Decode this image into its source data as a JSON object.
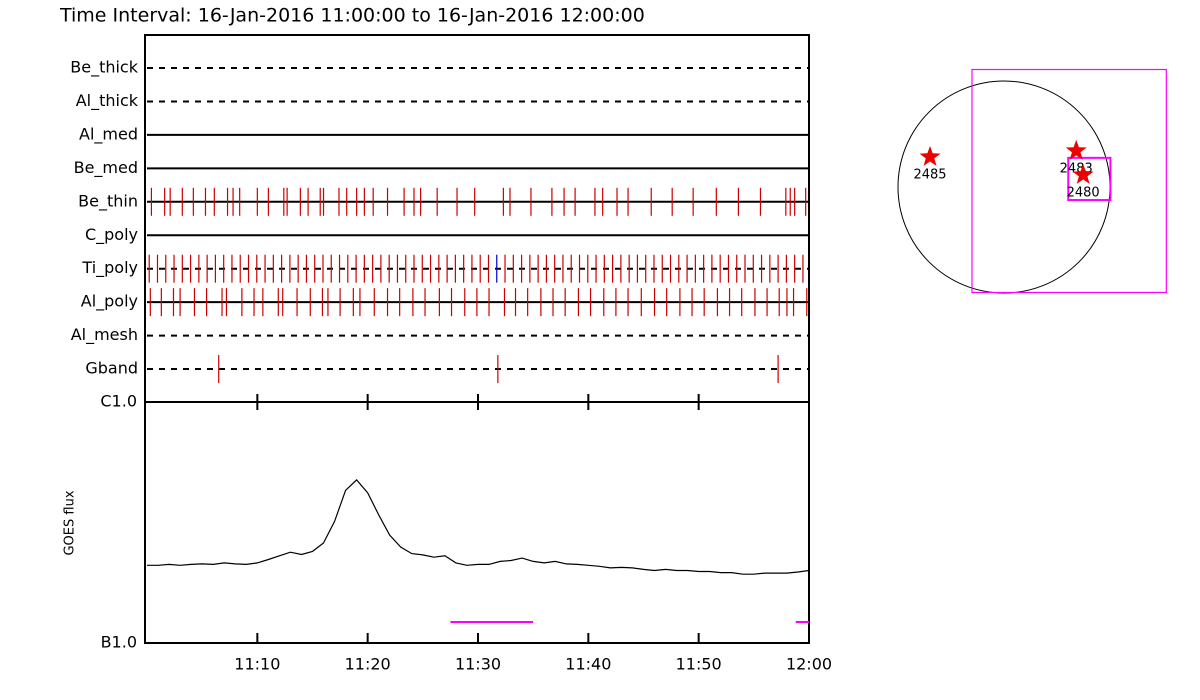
{
  "chart_data": [
    {
      "type": "timeline",
      "title": "Time Interval: 16-Jan-2016 11:00:00 to 16-Jan-2016 12:00:00",
      "xlim": [
        0,
        60
      ],
      "mark_color": "#cc0000",
      "rows": [
        {
          "name": "Be_thick",
          "line": "dashed",
          "times": []
        },
        {
          "name": "Al_thick",
          "line": "dashed",
          "times": []
        },
        {
          "name": "Al_med",
          "line": "solid",
          "times": []
        },
        {
          "name": "Be_med",
          "line": "solid",
          "times": []
        },
        {
          "name": "Be_thin",
          "line": "solid",
          "times": [
            0.4,
            1.6,
            2.1,
            3.2,
            4.2,
            5.3,
            6.1,
            7.3,
            7.8,
            8.4,
            10.0,
            11.0,
            12.4,
            12.7,
            13.9,
            14.6,
            15.7,
            16.0,
            17.4,
            18.1,
            19.0,
            19.7,
            20.5,
            21.8,
            23.3,
            24.2,
            24.8,
            26.3,
            28.1,
            29.7,
            32.3,
            32.9,
            34.8,
            36.7,
            37.8,
            38.8,
            40.6,
            41.3,
            42.6,
            43.6,
            45.7,
            47.6,
            49.5,
            51.6,
            53.6,
            55.6,
            57.9,
            58.3,
            58.7,
            59.7
          ]
        },
        {
          "name": "C_poly",
          "line": "solid",
          "times": []
        },
        {
          "name": "Ti_poly",
          "line": "dashed",
          "times": [
            0.2,
            0.95,
            1.7,
            2.45,
            3.2,
            3.95,
            4.7,
            5.45,
            6.2,
            6.95,
            7.7,
            8.45,
            9.2,
            9.95,
            10.7,
            11.45,
            12.2,
            12.95,
            13.7,
            14.45,
            15.2,
            15.95,
            16.7,
            17.45,
            18.2,
            18.95,
            19.7,
            20.45,
            21.2,
            21.95,
            22.7,
            23.45,
            24.2,
            24.95,
            25.7,
            26.45,
            27.2,
            27.95,
            28.7,
            29.45,
            30.2,
            30.95,
            32.45,
            33.2,
            33.95,
            34.7,
            35.45,
            36.2,
            36.95,
            37.7,
            38.45,
            39.2,
            39.95,
            40.7,
            41.45,
            42.2,
            42.95,
            43.7,
            44.45,
            45.2,
            45.95,
            46.7,
            47.45,
            48.2,
            48.95,
            49.7,
            50.45,
            51.2,
            51.95,
            52.7,
            53.45,
            54.2,
            54.95,
            55.7,
            56.45,
            57.2,
            57.95,
            58.7,
            59.45
          ],
          "extra_marks": {
            "color": "#0000cc",
            "times": [
              31.7
            ]
          }
        },
        {
          "name": "Al_poly",
          "line": "solid",
          "times": [
            0.3,
            1.3,
            2.4,
            3.0,
            4.3,
            5.4,
            6.8,
            7.2,
            8.6,
            9.7,
            10.5,
            11.9,
            12.3,
            13.6,
            14.8,
            15.9,
            16.4,
            17.5,
            18.7,
            19.3,
            20.6,
            21.8,
            22.9,
            24.1,
            25.2,
            26.5,
            27.6,
            28.8,
            29.9,
            31.0,
            32.4,
            33.4,
            34.5,
            35.7,
            36.8,
            37.9,
            39.1,
            40.2,
            41.4,
            42.5,
            43.6,
            44.8,
            46.0,
            47.1,
            48.3,
            49.4,
            50.5,
            51.7,
            52.8,
            53.9,
            55.1,
            56.2,
            57.3,
            58.0,
            58.6,
            59.8
          ]
        },
        {
          "name": "Al_mesh",
          "line": "dashed",
          "times": []
        },
        {
          "name": "Gband",
          "line": "dashed",
          "times": [
            6.5,
            31.8,
            57.2
          ]
        }
      ]
    },
    {
      "type": "line",
      "y_label": "GOES flux",
      "log_y": true,
      "color": "#000000",
      "xlim": [
        0,
        60
      ],
      "xticks": [
        {
          "value": 10,
          "label": "11:10"
        },
        {
          "value": 20,
          "label": "11:20"
        },
        {
          "value": 30,
          "label": "11:30"
        },
        {
          "value": 40,
          "label": "11:40"
        },
        {
          "value": 50,
          "label": "11:50"
        },
        {
          "value": 60,
          "label": "12:00"
        }
      ],
      "ylim": [
        1,
        10
      ],
      "yticks": [
        {
          "value": 1,
          "label": "B1.0"
        },
        {
          "value": 10,
          "label": "C1.0"
        }
      ],
      "x": [
        0,
        1,
        2,
        3,
        4,
        5,
        6,
        7,
        8,
        9,
        10,
        11,
        12,
        13,
        14,
        15,
        16,
        17,
        18,
        19,
        20,
        21,
        22,
        23,
        24,
        25,
        26,
        27,
        28,
        29,
        30,
        31,
        32,
        33,
        34,
        35,
        36,
        37,
        38,
        39,
        40,
        41,
        42,
        43,
        44,
        45,
        46,
        47,
        48,
        49,
        50,
        51,
        52,
        53,
        54,
        55,
        56,
        57,
        58,
        59,
        60
      ],
      "values": [
        2.1,
        2.1,
        2.12,
        2.1,
        2.12,
        2.13,
        2.12,
        2.15,
        2.13,
        2.12,
        2.15,
        2.22,
        2.3,
        2.38,
        2.33,
        2.4,
        2.6,
        3.2,
        4.3,
        4.75,
        4.2,
        3.4,
        2.8,
        2.5,
        2.35,
        2.32,
        2.27,
        2.3,
        2.15,
        2.1,
        2.12,
        2.12,
        2.18,
        2.2,
        2.25,
        2.18,
        2.15,
        2.18,
        2.13,
        2.12,
        2.1,
        2.08,
        2.05,
        2.06,
        2.05,
        2.02,
        2.0,
        2.02,
        2.0,
        2.0,
        1.98,
        1.98,
        1.96,
        1.96,
        1.93,
        1.93,
        1.95,
        1.95,
        1.95,
        1.97,
        2.0
      ],
      "intervals": {
        "color": "#ff00ff",
        "ranges": [
          [
            27.5,
            35
          ],
          [
            58.8,
            60
          ]
        ]
      }
    },
    {
      "type": "map",
      "disk_radius": 960,
      "star_color": "#ee0000",
      "box_color": "#ff00ff",
      "boxes": [
        {
          "x": [
            -290,
            1470
          ],
          "y": [
            -955,
            1064
          ]
        },
        {
          "x": [
            582,
            964
          ],
          "y": [
            -118,
            264
          ]
        }
      ],
      "points": [
        {
          "label": "2485",
          "x": -670,
          "y": 272
        },
        {
          "label": "2483",
          "x": 654,
          "y": 327
        },
        {
          "label": "2480",
          "x": 717,
          "y": 109
        }
      ]
    }
  ]
}
